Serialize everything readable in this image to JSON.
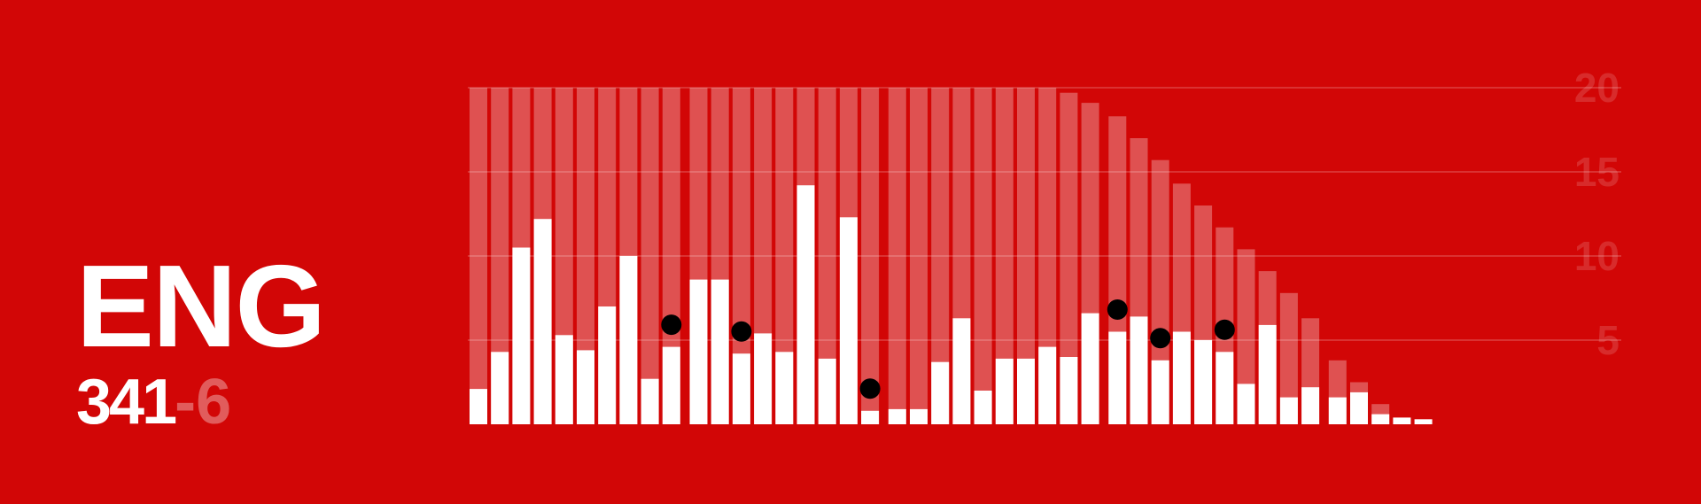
{
  "team": {
    "name": "ENG",
    "runs": "341",
    "separator": "-",
    "wickets": "6"
  },
  "colors": {
    "background": "#d20606",
    "bar": "#ffffff",
    "over_rate": "rgba(255,255,255,0.30)",
    "grid": "rgba(255,255,255,0.18)",
    "wicket": "#000000",
    "tick": "rgba(255,255,255,0.15)"
  },
  "chart_data": {
    "type": "bar",
    "title": "",
    "xlabel": "",
    "ylabel": "",
    "ylim": [
      0,
      20
    ],
    "yticks": [
      5,
      10,
      15,
      20
    ],
    "grid": true,
    "legend": "none",
    "series": [
      {
        "kind": "runs_per_over",
        "values": [
          2.1,
          4.3,
          10.5,
          12.2,
          5.3,
          4.4,
          7.0,
          10.0,
          2.7,
          4.6,
          8.6,
          8.6,
          4.2,
          5.4,
          4.3,
          14.2,
          3.9,
          12.3,
          0.8,
          0.9,
          0.9,
          3.7,
          6.3,
          2.0,
          3.9,
          3.9,
          4.6,
          4.0,
          6.6,
          5.5,
          6.4,
          3.8,
          5.5,
          5.0,
          4.3,
          2.4,
          5.9,
          1.6,
          2.2,
          1.6,
          1.9,
          0.6,
          0.4,
          0.3
        ]
      },
      {
        "kind": "required_rate",
        "values": [
          20,
          20,
          20,
          20,
          20,
          20,
          20,
          20,
          20,
          20,
          20,
          20,
          20,
          20,
          20,
          20,
          20,
          20,
          20,
          20,
          20,
          20,
          20,
          20,
          20,
          20,
          20,
          19.7,
          19.1,
          18.3,
          17.0,
          15.7,
          14.3,
          13.0,
          11.7,
          10.4,
          9.1,
          7.8,
          6.3,
          3.8,
          2.5,
          1.2,
          0,
          0
        ]
      }
    ],
    "groups": [
      10,
      9,
      10,
      10,
      5
    ],
    "wickets": [
      9,
      12,
      18,
      29,
      31,
      34
    ]
  }
}
